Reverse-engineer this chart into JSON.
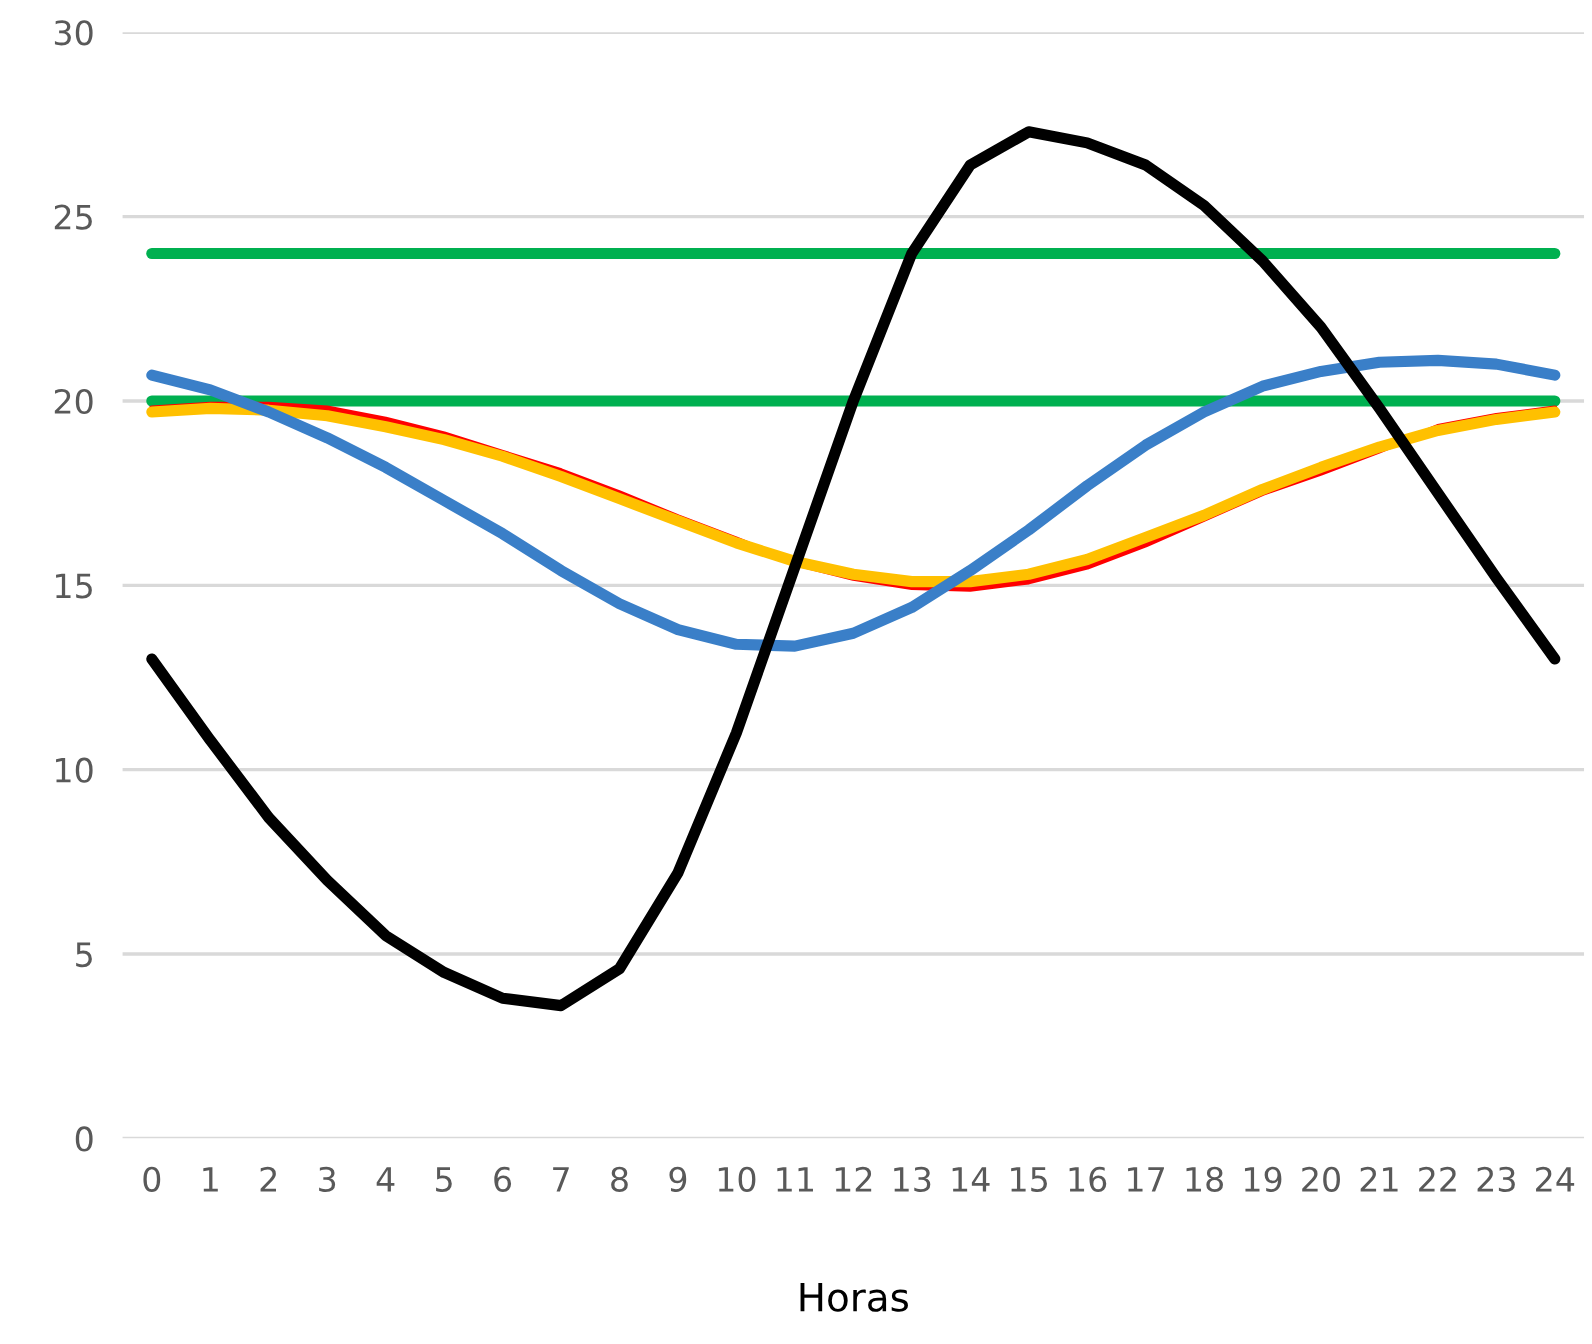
{
  "chart_data": {
    "type": "line",
    "xlabel": "Horas",
    "categories": [
      "0",
      "1",
      "2",
      "3",
      "4",
      "5",
      "6",
      "7",
      "8",
      "9",
      "10",
      "11",
      "12",
      "13",
      "14",
      "15",
      "16",
      "17",
      "18",
      "19",
      "20",
      "21",
      "22",
      "23",
      "24"
    ],
    "series": [
      {
        "color": "#00b050",
        "values": [
          24,
          24,
          24,
          24,
          24,
          24,
          24,
          24,
          24,
          24,
          24,
          24,
          24,
          24,
          24,
          24,
          24,
          24,
          24,
          24,
          24,
          24,
          24,
          24,
          24
        ]
      },
      {
        "color": "#00b050",
        "values": [
          20,
          20,
          20,
          20,
          20,
          20,
          20,
          20,
          20,
          20,
          20,
          20,
          20,
          20,
          20,
          20,
          20,
          20,
          20,
          20,
          20,
          20,
          20,
          20,
          20
        ]
      },
      {
        "color": "#ff0000",
        "values": [
          19.8,
          19.9,
          19.9,
          19.8,
          19.5,
          19.1,
          18.6,
          18.1,
          17.5,
          16.85,
          16.25,
          15.6,
          15.2,
          14.95,
          14.9,
          15.1,
          15.5,
          16.1,
          16.8,
          17.5,
          18.05,
          18.65,
          19.3,
          19.6,
          19.8
        ]
      },
      {
        "color": "#ffc000",
        "values": [
          19.7,
          19.8,
          19.75,
          19.6,
          19.3,
          18.95,
          18.5,
          17.95,
          17.35,
          16.75,
          16.15,
          15.65,
          15.3,
          15.1,
          15.1,
          15.3,
          15.7,
          16.3,
          16.9,
          17.6,
          18.2,
          18.75,
          19.2,
          19.5,
          19.7
        ]
      },
      {
        "color": "#3a7fc8",
        "values": [
          20.7,
          20.3,
          19.7,
          19.0,
          18.2,
          17.3,
          16.4,
          15.4,
          14.5,
          13.8,
          13.4,
          13.35,
          13.7,
          14.4,
          15.4,
          16.5,
          17.7,
          18.8,
          19.7,
          20.4,
          20.8,
          21.05,
          21.1,
          21.0,
          20.7
        ]
      },
      {
        "color": "#000000",
        "values": [
          13.0,
          10.8,
          8.7,
          7.0,
          5.5,
          4.5,
          3.8,
          3.6,
          4.6,
          7.2,
          11.0,
          15.5,
          20.0,
          24.0,
          26.4,
          27.3,
          27.0,
          26.4,
          25.3,
          23.8,
          22.0,
          19.8,
          17.5,
          15.2,
          13.0
        ]
      }
    ],
    "ylim": [
      0,
      30
    ],
    "yticks": [
      0,
      5,
      10,
      15,
      20,
      25,
      30
    ],
    "grid": "y",
    "legend": false,
    "marker": "none",
    "line_style": "solid"
  }
}
